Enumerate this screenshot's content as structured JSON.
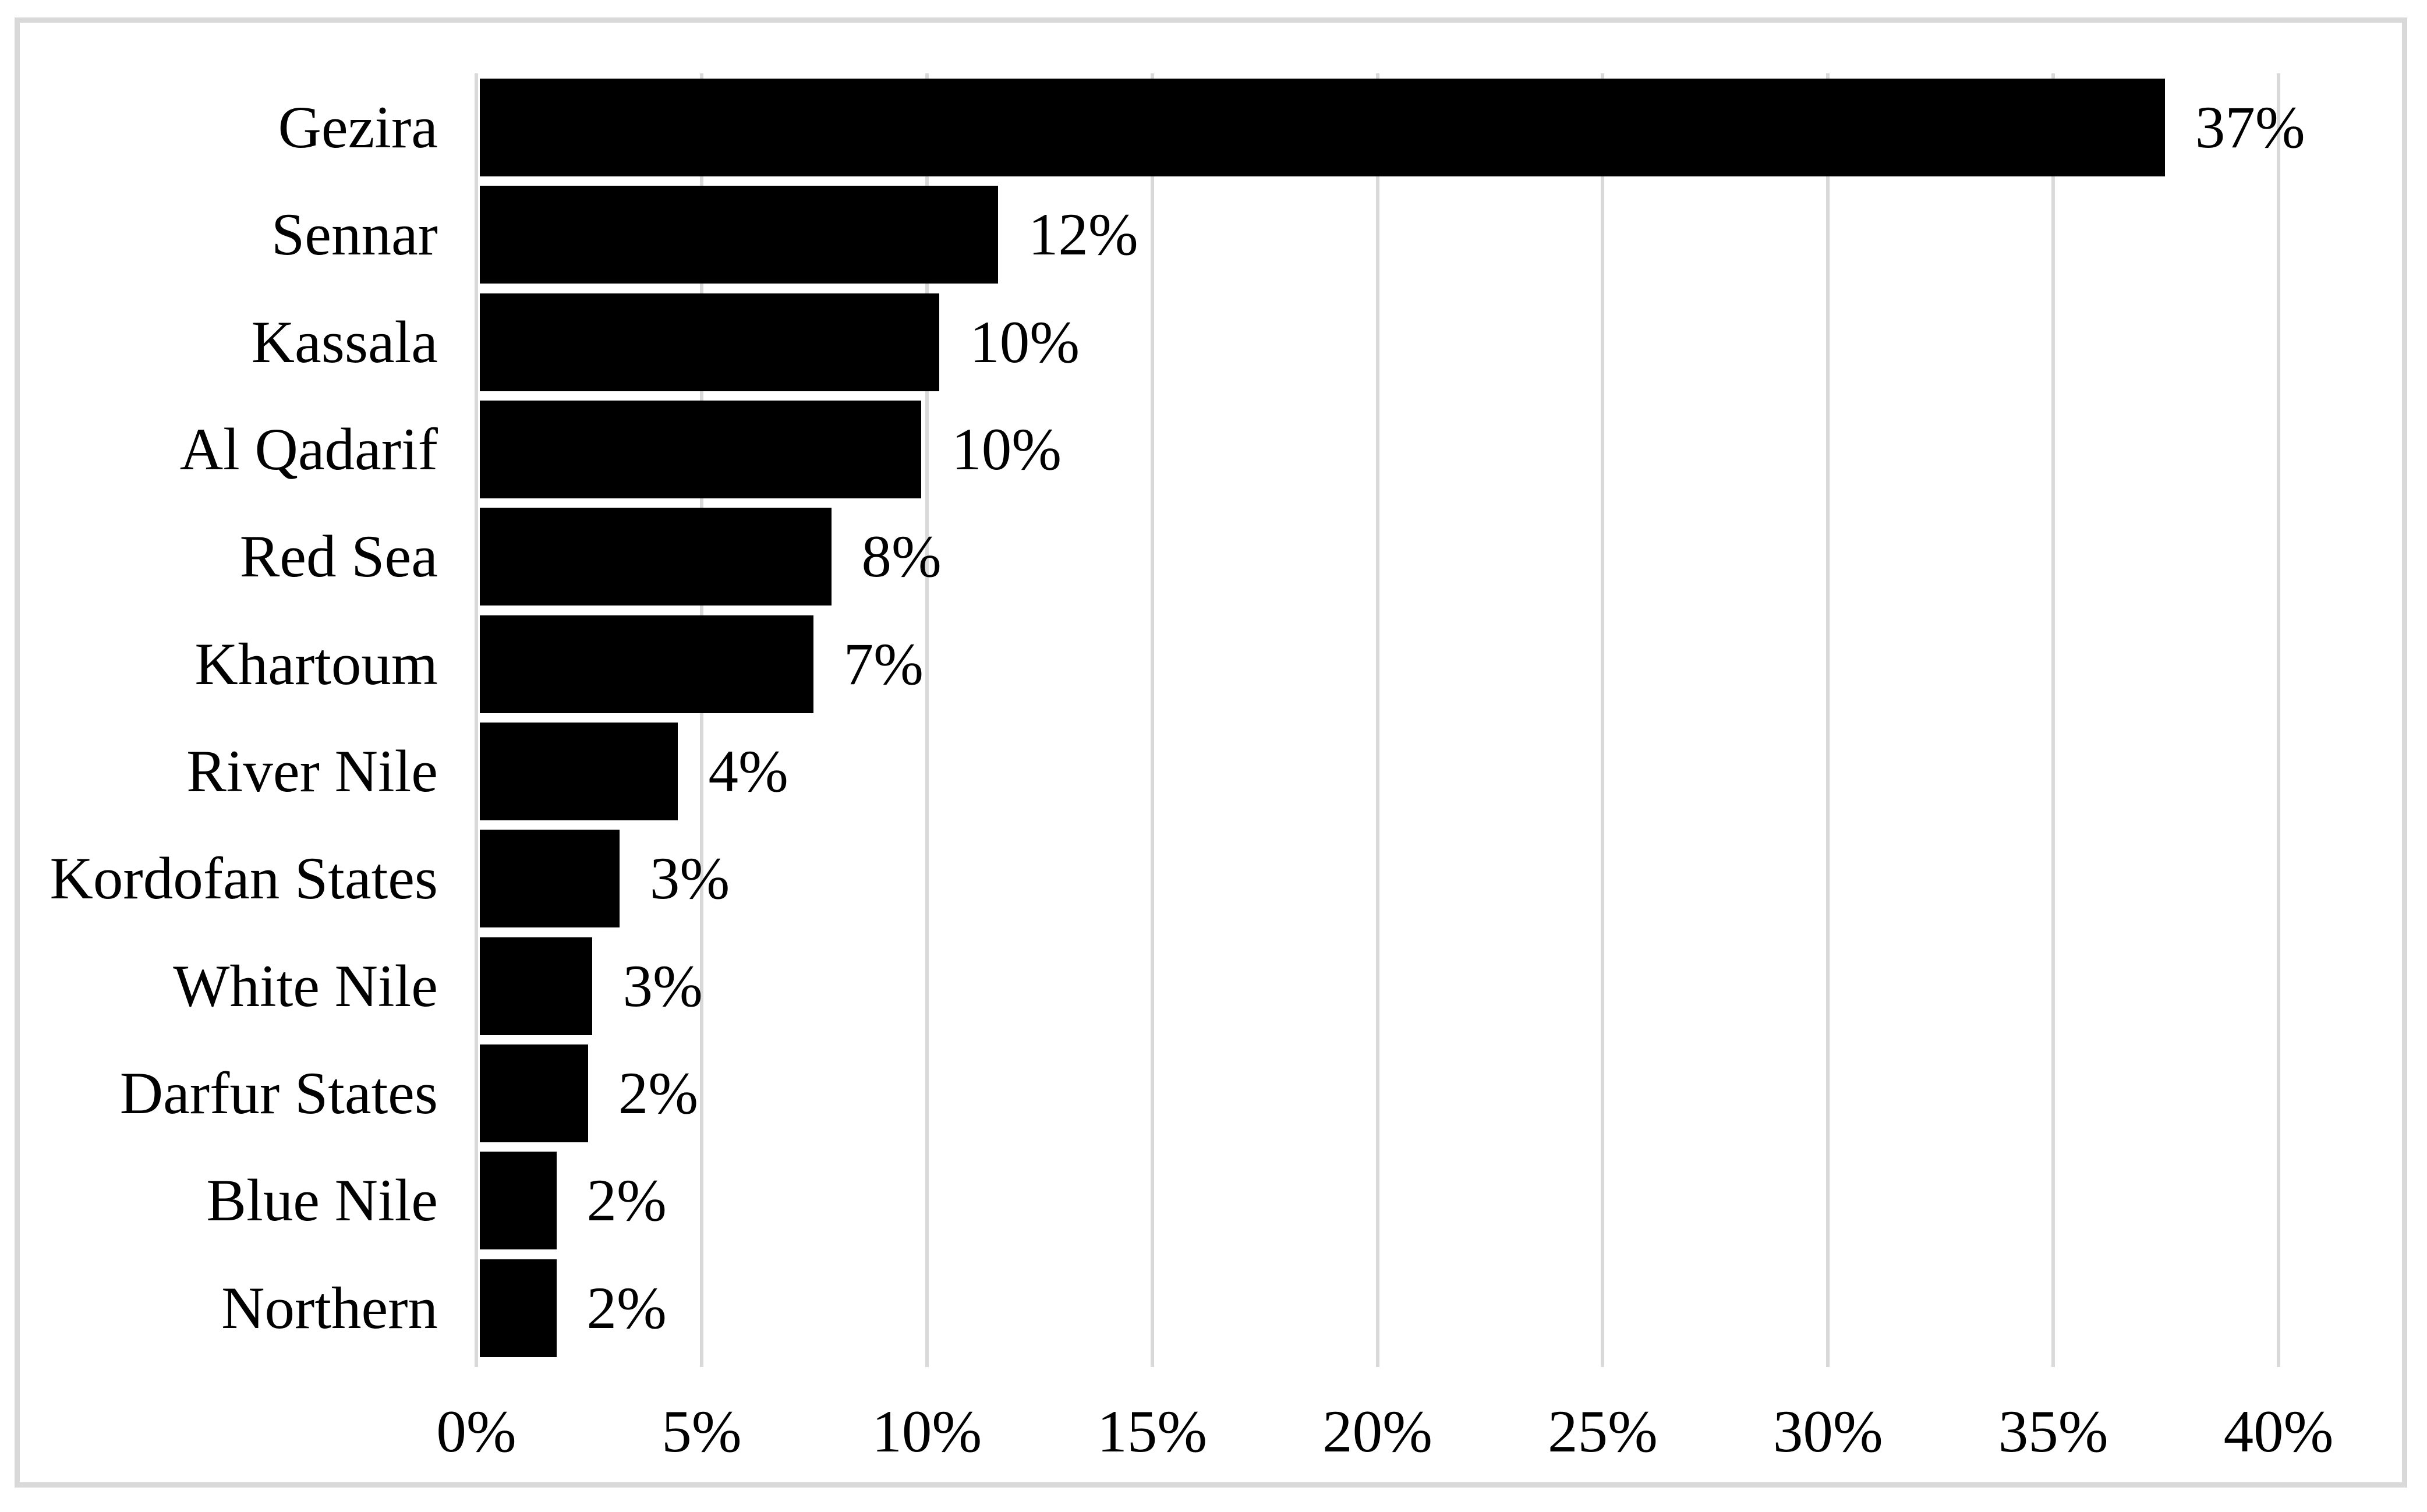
{
  "chart_data": {
    "type": "bar",
    "orientation": "horizontal",
    "title": "",
    "xlabel": "",
    "ylabel": "",
    "categories": [
      "Gezira",
      "Sennar",
      "Kassala",
      "Al Qadarif",
      "Red Sea",
      "Khartoum",
      "River Nile",
      "Kordofan States",
      "White Nile",
      "Darfur States",
      "Blue Nile",
      "Northern"
    ],
    "values": [
      37.4,
      11.5,
      10.2,
      9.8,
      7.8,
      7.4,
      4.4,
      3.1,
      2.5,
      2.4,
      1.7,
      1.7
    ],
    "data_labels": [
      "37%",
      "12%",
      "10%",
      "10%",
      "8%",
      "7%",
      "4%",
      "3%",
      "3%",
      "2%",
      "2%",
      "2%"
    ],
    "x_tick_labels": [
      "0%",
      "5%",
      "10%",
      "15%",
      "20%",
      "25%",
      "30%",
      "35%",
      "40%"
    ],
    "x_tick_values": [
      0,
      5,
      10,
      15,
      20,
      25,
      30,
      35,
      40
    ],
    "xlim": [
      0,
      40
    ],
    "grid": "vertical",
    "legend": "none",
    "colors": {
      "bar": "#000000",
      "gridline": "#d9d9d9",
      "frame": "#d9d9d9",
      "text": "#000000",
      "background": "#ffffff"
    }
  }
}
